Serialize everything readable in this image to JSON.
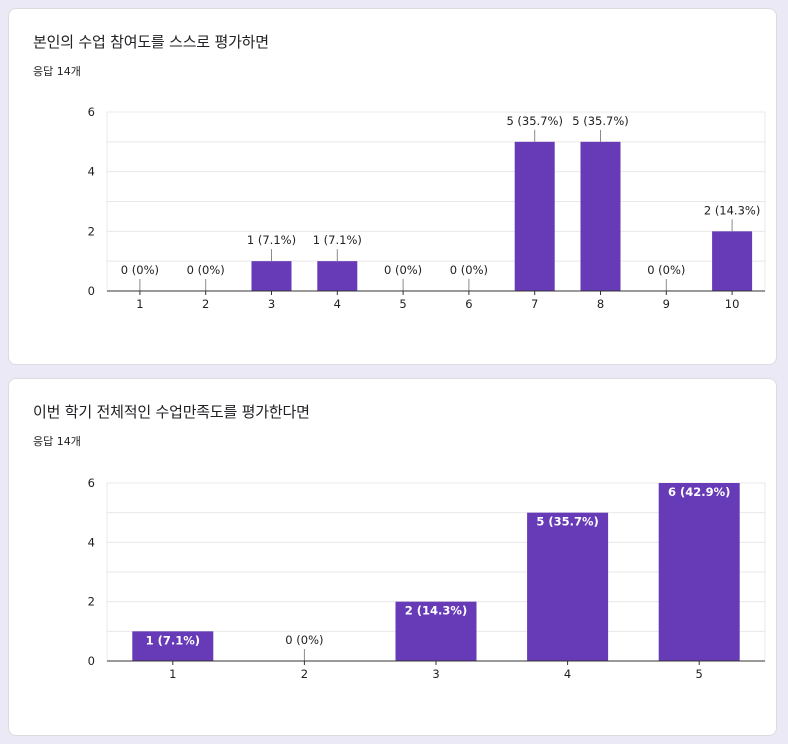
{
  "colors": {
    "bar": "#673ab7",
    "grid": "#e8e8e8",
    "axis": "#333333",
    "bg": "#ece9f7"
  },
  "chart_data": [
    {
      "type": "bar",
      "title": "본인의 수업 참여도를 스스로 평가하면",
      "subtitle": "응답 14개",
      "categories": [
        "1",
        "2",
        "3",
        "4",
        "5",
        "6",
        "7",
        "8",
        "9",
        "10"
      ],
      "values": [
        0,
        0,
        1,
        1,
        0,
        0,
        5,
        5,
        0,
        2
      ],
      "data_labels": [
        "0 (0%)",
        "0 (0%)",
        "1 (7.1%)",
        "1 (7.1%)",
        "0 (0%)",
        "0 (0%)",
        "5 (35.7%)",
        "5 (35.7%)",
        "0 (0%)",
        "2 (14.3%)"
      ],
      "yticks": [
        "0",
        "2",
        "4",
        "6"
      ],
      "ylim": [
        0,
        6
      ],
      "label_position": "above",
      "xlabel": "",
      "ylabel": ""
    },
    {
      "type": "bar",
      "title": "이번 학기 전체적인 수업만족도를 평가한다면",
      "subtitle": "응답 14개",
      "categories": [
        "1",
        "2",
        "3",
        "4",
        "5"
      ],
      "values": [
        1,
        0,
        2,
        5,
        6
      ],
      "data_labels": [
        "1 (7.1%)",
        "0 (0%)",
        "2 (14.3%)",
        "5 (35.7%)",
        "6 (42.9%)"
      ],
      "yticks": [
        "0",
        "2",
        "4",
        "6"
      ],
      "ylim": [
        0,
        6
      ],
      "label_position": "inside-top",
      "xlabel": "",
      "ylabel": ""
    }
  ]
}
